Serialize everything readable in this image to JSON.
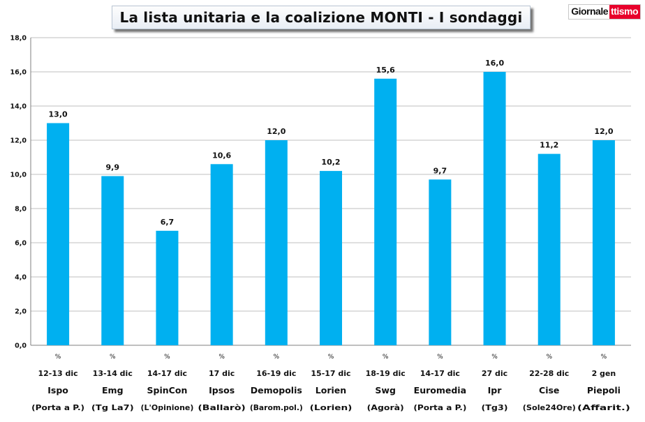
{
  "header": {
    "title": "La lista unitaria e la coalizione MONTI - I sondaggi",
    "brand_part1": "Giornale",
    "brand_part2": "ttismo"
  },
  "chart_data": {
    "type": "bar",
    "title": "La lista unitaria e la coalizione MONTI - I sondaggi",
    "ylim": [
      0,
      18
    ],
    "yticks": [
      "0,0",
      "2,0",
      "4,0",
      "6,0",
      "8,0",
      "10,0",
      "12,0",
      "14,0",
      "16,0",
      "18,0"
    ],
    "grid": true,
    "legend": "none",
    "bar_color": "#00b0f0",
    "categories": [
      {
        "unit": "%",
        "date": "12-13 dic",
        "institute": "Ispo",
        "source": "(Porta a P.)"
      },
      {
        "unit": "%",
        "date": "13-14 dic",
        "institute": "Emg",
        "source": "(Tg La7)"
      },
      {
        "unit": "%",
        "date": "14-17 dic",
        "institute": "SpinCon",
        "source": "(L'Opinione)"
      },
      {
        "unit": "%",
        "date": "17 dic",
        "institute": "Ipsos",
        "source": "(Ballarò)"
      },
      {
        "unit": "%",
        "date": "16-19 dic",
        "institute": "Demopolis",
        "source": "(Barom.pol.)"
      },
      {
        "unit": "%",
        "date": "15-17 dic",
        "institute": "Lorien",
        "source": "(Lorien)"
      },
      {
        "unit": "%",
        "date": "18-19 dic",
        "institute": "Swg",
        "source": "(Agorà)"
      },
      {
        "unit": "%",
        "date": "14-17 dic",
        "institute": "Euromedia",
        "source": "(Porta a P.)"
      },
      {
        "unit": "%",
        "date": "27 dic",
        "institute": "Ipr",
        "source": "(Tg3)"
      },
      {
        "unit": "%",
        "date": "22-28 dic",
        "institute": "Cise",
        "source": "(Sole24Ore)"
      },
      {
        "unit": "%",
        "date": "2 gen",
        "institute": "Piepoli",
        "source": "(Affarit.)"
      }
    ],
    "values": [
      13.0,
      9.9,
      6.7,
      10.6,
      12.0,
      10.2,
      15.6,
      9.7,
      16.0,
      11.2,
      12.0
    ],
    "value_labels": [
      "13,0",
      "9,9",
      "6,7",
      "10,6",
      "12,0",
      "10,2",
      "15,6",
      "9,7",
      "16,0",
      "11,2",
      "12,0"
    ]
  }
}
